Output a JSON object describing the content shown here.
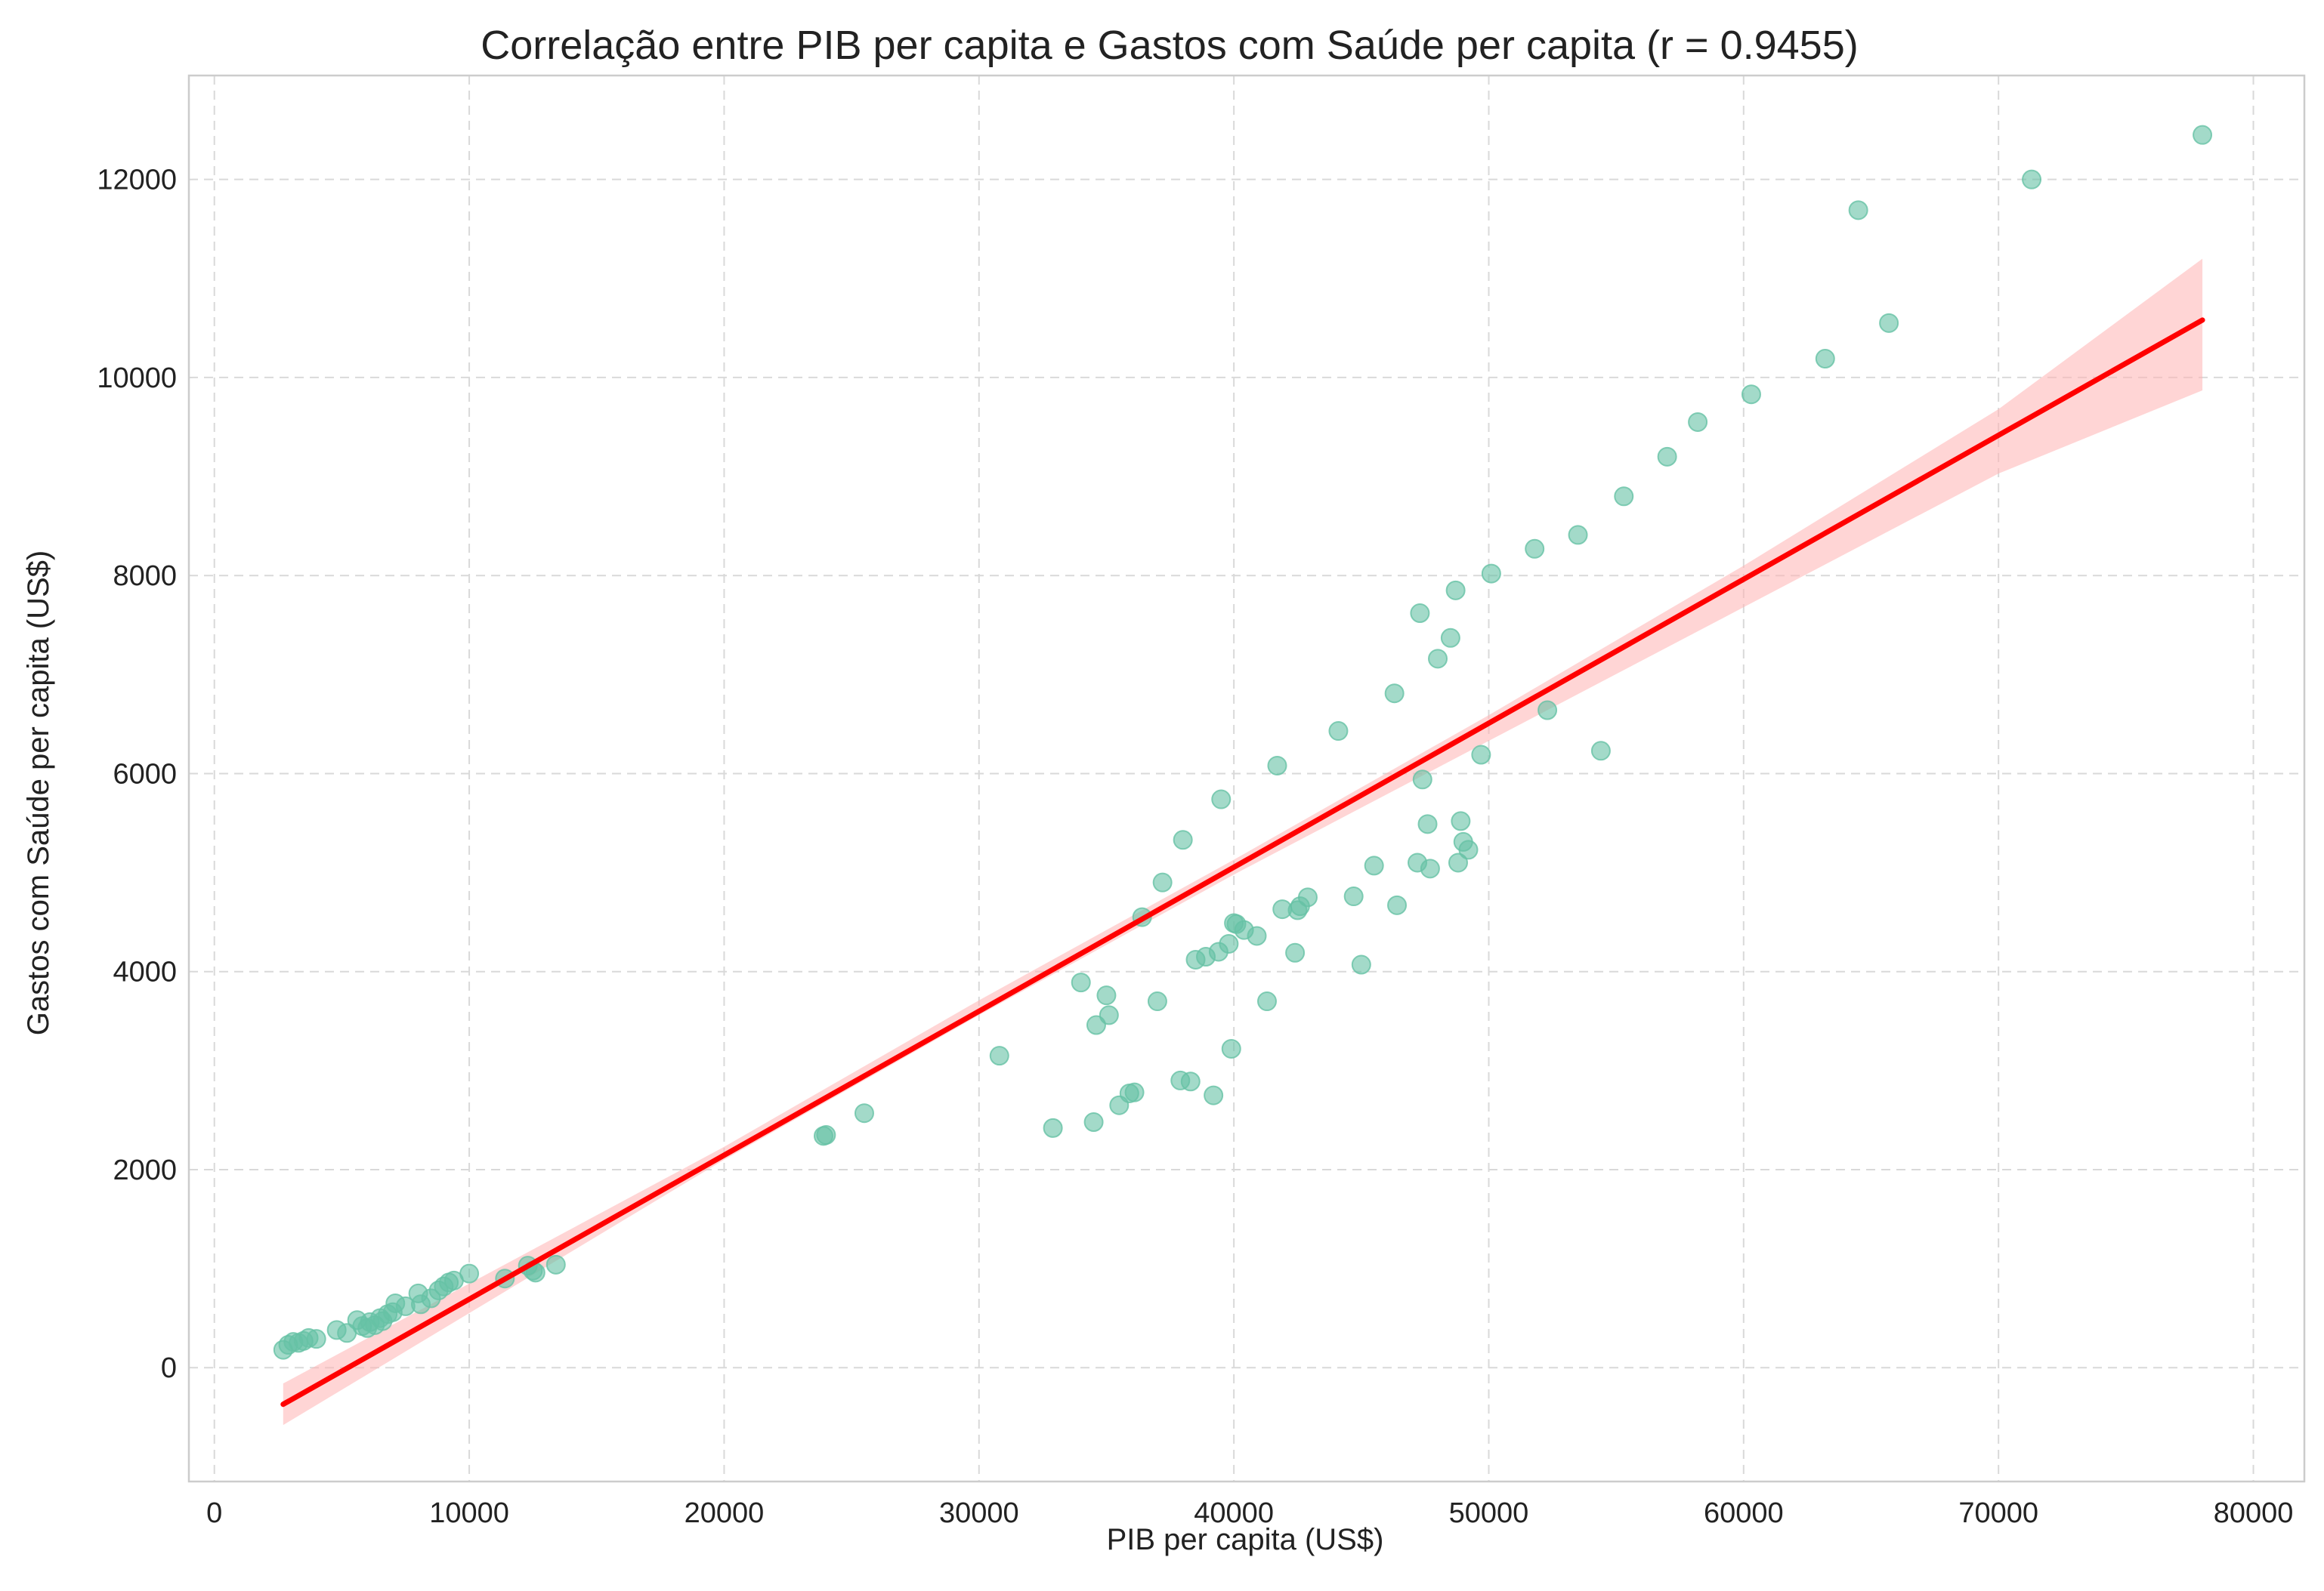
{
  "chart_data": {
    "type": "scatter",
    "title": "Correlação entre PIB per capita e Gastos com Saúde per capita (r = 0.9455)",
    "xlabel": "PIB per capita (US$)",
    "ylabel": "Gastos com Saúde per capita (US$)",
    "xlim": [
      -1000,
      82000
    ],
    "ylim": [
      -1150,
      13050
    ],
    "xticks": [
      0,
      10000,
      20000,
      30000,
      40000,
      50000,
      60000,
      70000,
      80000
    ],
    "yticks": [
      0,
      2000,
      4000,
      6000,
      8000,
      10000,
      12000
    ],
    "grid": true,
    "colors": {
      "points": "#66c2a5",
      "regression_line": "#ff0000",
      "confidence_band": "#ffb3b3"
    },
    "regression": {
      "x": [
        2700,
        78000
      ],
      "y": [
        -370,
        10580
      ]
    },
    "confidence_band": {
      "x": [
        2700,
        20000,
        30000,
        40000,
        50000,
        60000,
        70000,
        78000
      ],
      "lower": [
        -580,
        2100,
        3560,
        4980,
        6330,
        7680,
        9030,
        9870
      ],
      "upper": [
        -160,
        2230,
        3710,
        5130,
        6590,
        8100,
        9680,
        11200
      ]
    },
    "points": {
      "x": [
        2700,
        2900,
        3100,
        3300,
        3500,
        3700,
        4000,
        4800,
        5200,
        5600,
        5800,
        6000,
        6100,
        6300,
        6500,
        6600,
        6800,
        7000,
        7100,
        7500,
        8000,
        8100,
        8500,
        8800,
        9000,
        9200,
        9400,
        10000,
        11400,
        12300,
        12500,
        12600,
        13400,
        23900,
        24000,
        25500,
        30800,
        32900,
        34000,
        34500,
        34600,
        35000,
        35100,
        35500,
        35900,
        36100,
        36400,
        37000,
        37200,
        37900,
        38000,
        38300,
        38500,
        38900,
        39200,
        39400,
        39500,
        39800,
        39900,
        40000,
        40100,
        40400,
        40900,
        41300,
        41700,
        41900,
        42400,
        42500,
        42600,
        42900,
        44100,
        44700,
        45000,
        45500,
        46300,
        46400,
        47200,
        47300,
        47400,
        47600,
        47700,
        48000,
        48500,
        48700,
        48800,
        48900,
        49000,
        49200,
        49700,
        50100,
        51800,
        52300,
        53500,
        54400,
        55300,
        57000,
        58200,
        60300,
        63200,
        64500,
        65700,
        71300,
        78000
      ],
      "y": [
        180,
        230,
        260,
        250,
        270,
        300,
        290,
        380,
        350,
        480,
        420,
        400,
        460,
        430,
        500,
        470,
        540,
        560,
        650,
        620,
        750,
        640,
        700,
        780,
        820,
        860,
        880,
        950,
        900,
        1030,
        980,
        960,
        1040,
        2340,
        2350,
        2570,
        3150,
        2420,
        3890,
        2480,
        3460,
        3760,
        3560,
        2650,
        2770,
        2780,
        4550,
        3700,
        4900,
        2900,
        5330,
        2890,
        4120,
        4150,
        2750,
        4200,
        5740,
        4280,
        3220,
        4490,
        4480,
        4420,
        4360,
        3700,
        6080,
        4630,
        4190,
        4620,
        4660,
        4750,
        6430,
        4760,
        4070,
        5070,
        6810,
        4670,
        5100,
        7620,
        5940,
        5490,
        5040,
        7160,
        7370,
        7850,
        5100,
        5520,
        5310,
        5230,
        6190,
        8020,
        8270,
        6640,
        8410,
        6230,
        8800,
        9200,
        9550,
        9830,
        10190,
        11690,
        10550,
        12000,
        12450
      ]
    }
  }
}
